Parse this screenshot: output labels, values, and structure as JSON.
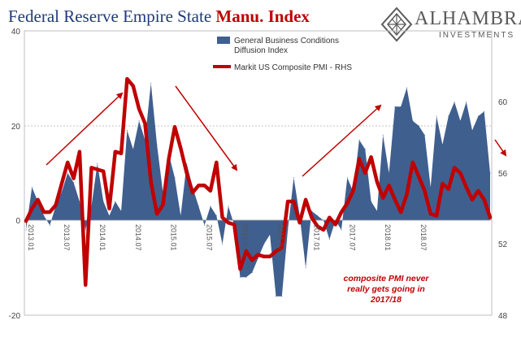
{
  "header": {
    "title_main": "Federal Reserve Empire State ",
    "title_accent": "Manu. Index",
    "logo_name": "ALHAMBRA",
    "logo_sub": "INVESTMENTS"
  },
  "colors": {
    "title": "#1f3a7a",
    "accent": "#c00000",
    "area": "#3f5f8f",
    "line": "#c00000"
  },
  "chart_data": {
    "type": "area",
    "legend": {
      "placement": "top-center",
      "area_label_line1": "General Business Conditions",
      "area_label_line2": "Diffusion Index",
      "line_label": "Markit US Composite PMI - RHS"
    },
    "y_left": {
      "ylim": [
        -20,
        40
      ],
      "ticks": [
        "40",
        "20",
        "0",
        "-20"
      ]
    },
    "y_right": {
      "ylim": [
        48,
        64
      ],
      "ticks": [
        "60",
        "56",
        "52",
        "48"
      ]
    },
    "x_ticks": [
      "2013.01",
      "2013.07",
      "2014.01",
      "2014.07",
      "2015.01",
      "2015.07",
      "2016.01",
      "2016.07",
      "2017.01",
      "2017.07",
      "2018.01",
      "2018.07"
    ],
    "grid": "horizontal dashed at 20",
    "series": [
      {
        "name": "General Business Conditions Diffusion Index",
        "type": "area",
        "axis": "left",
        "values": [
          -2,
          7,
          4,
          1,
          -1,
          3,
          6,
          10,
          8,
          4,
          -2,
          3,
          12,
          4,
          1,
          4,
          2,
          19,
          15,
          21,
          17,
          29,
          16,
          6,
          14,
          9,
          1,
          12,
          7,
          3,
          -1,
          3,
          1,
          -5,
          3,
          -1,
          -12,
          -12,
          -11,
          -8,
          -5,
          -3,
          -16,
          -16,
          -2,
          9,
          1,
          -10,
          2,
          1,
          0,
          -4,
          0,
          -2,
          9,
          6,
          17,
          15,
          4,
          2,
          18,
          10,
          24,
          24,
          28,
          21,
          20,
          18,
          7,
          22,
          16,
          22,
          25,
          21,
          25,
          19,
          22,
          23,
          10
        ]
      },
      {
        "name": "Markit US Composite PMI - RHS",
        "type": "line",
        "axis": "right",
        "values": [
          53.3,
          54.0,
          54.5,
          53.8,
          53.8,
          54.2,
          55.4,
          56.6,
          55.7,
          57.2,
          49.7,
          56.3,
          56.2,
          56.1,
          54.0,
          57.2,
          57.1,
          61.3,
          60.9,
          59.6,
          58.8,
          55.5,
          53.7,
          54.2,
          56.8,
          58.6,
          57.4,
          56.0,
          54.9,
          55.3,
          55.3,
          55.0,
          56.6,
          53.5,
          53.2,
          53.1,
          50.6,
          51.6,
          51.1,
          51.4,
          51.3,
          51.3,
          51.6,
          51.8,
          54.4,
          54.4,
          53.2,
          54.5,
          53.5,
          53.0,
          52.8,
          53.5,
          53.1,
          53.8,
          54.3,
          55.0,
          56.8,
          56.0,
          56.9,
          55.5,
          54.6,
          55.3,
          54.5,
          53.8,
          54.8,
          56.6,
          55.8,
          55.0,
          53.7,
          53.6,
          55.4,
          55.1,
          56.3,
          56.0,
          55.2,
          54.5,
          55.0,
          54.5,
          53.5
        ]
      }
    ],
    "annotations": {
      "note_line1": "composite PMI never",
      "note_line2": "really gets going in",
      "note_line3": "2017/18",
      "arrows": 5
    }
  }
}
